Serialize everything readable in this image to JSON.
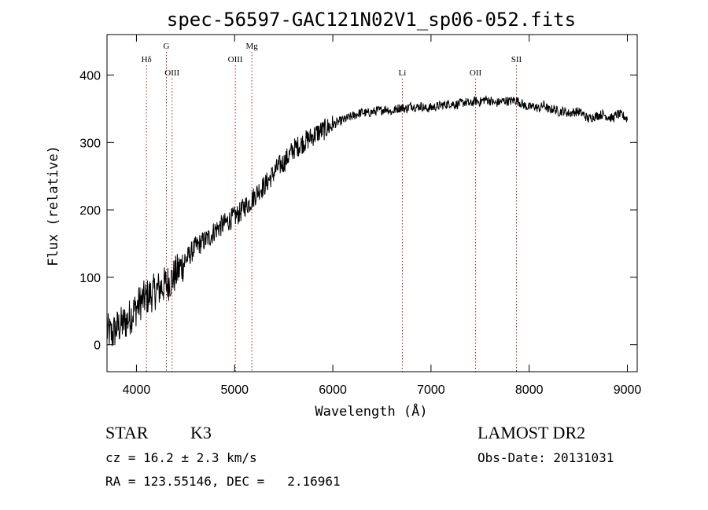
{
  "chart_data": {
    "type": "line",
    "title": "spec-56597-GAC121N02V1_sp06-052.fits",
    "xlabel": "Wavelength (Å)",
    "ylabel": "Flux (relative)",
    "xlim": [
      3700,
      9100
    ],
    "ylim": [
      -40,
      460
    ],
    "xticks": [
      4000,
      5000,
      6000,
      7000,
      8000,
      9000
    ],
    "yticks": [
      0,
      100,
      200,
      300,
      400
    ],
    "grid": false,
    "series": [
      {
        "x": [
          3700,
          3750,
          3800,
          3850,
          3900,
          3950,
          4000,
          4050,
          4100,
          4150,
          4200,
          4250,
          4300,
          4350,
          4400,
          4450,
          4500,
          4550,
          4600,
          4650,
          4700,
          4750,
          4800,
          4850,
          4900,
          4950,
          5000,
          5050,
          5100,
          5150,
          5200,
          5250,
          5300,
          5350,
          5400,
          5450,
          5500,
          5550,
          5600,
          5650,
          5700,
          5750,
          5800,
          5850,
          5900,
          5950,
          6000,
          6050,
          6100,
          6150,
          6200,
          6250,
          6300,
          6350,
          6400,
          6450,
          6500,
          6550,
          6600,
          6650,
          6700,
          6750,
          6800,
          6850,
          6900,
          6950,
          7000,
          7050,
          7100,
          7150,
          7200,
          7250,
          7300,
          7350,
          7400,
          7450,
          7500,
          7550,
          7600,
          7650,
          7700,
          7750,
          7800,
          7850,
          7900,
          7950,
          8000,
          8050,
          8100,
          8150,
          8200,
          8250,
          8300,
          8350,
          8400,
          8450,
          8500,
          8550,
          8600,
          8650,
          8700,
          8750,
          8800,
          8850,
          8900,
          8950,
          9000
        ],
        "y": [
          20,
          15,
          25,
          30,
          35,
          45,
          55,
          65,
          70,
          75,
          80,
          85,
          90,
          95,
          105,
          115,
          125,
          135,
          145,
          150,
          155,
          160,
          170,
          175,
          180,
          185,
          190,
          195,
          205,
          210,
          220,
          230,
          235,
          245,
          255,
          265,
          270,
          280,
          290,
          295,
          300,
          305,
          310,
          315,
          318,
          322,
          326,
          330,
          333,
          336,
          339,
          342,
          345,
          343,
          345,
          347,
          348,
          350,
          345,
          350,
          352,
          350,
          355,
          352,
          354,
          350,
          352,
          353,
          355,
          356,
          358,
          356,
          358,
          360,
          357,
          362,
          360,
          364,
          362,
          358,
          360,
          362,
          361,
          363,
          360,
          355,
          352,
          354,
          350,
          356,
          348,
          350,
          345,
          347,
          343,
          345,
          346,
          342,
          335,
          338,
          340,
          342,
          338,
          336,
          342,
          340,
          335
        ]
      }
    ],
    "annotations": [
      {
        "label": "Hδ",
        "x": 4102,
        "row": "top"
      },
      {
        "label": "G",
        "x": 4305,
        "row": "high"
      },
      {
        "label": "OIII",
        "x": 4363,
        "row": "low"
      },
      {
        "label": "OIII",
        "x": 5007,
        "row": "top"
      },
      {
        "label": "Mg",
        "x": 5175,
        "row": "high"
      },
      {
        "label": "Li",
        "x": 6708,
        "row": "low"
      },
      {
        "label": "OII",
        "x": 7454,
        "row": "low"
      },
      {
        "label": "SII",
        "x": 7870,
        "row": "top"
      }
    ]
  },
  "info": {
    "class_label": "STAR",
    "subclass": "K3",
    "cz": "cz = 16.2 ± 2.3 km/s",
    "coords": "RA = 123.55146, DEC =   2.16961",
    "survey": "LAMOST DR2",
    "obs_date": "Obs-Date: 20131031"
  }
}
